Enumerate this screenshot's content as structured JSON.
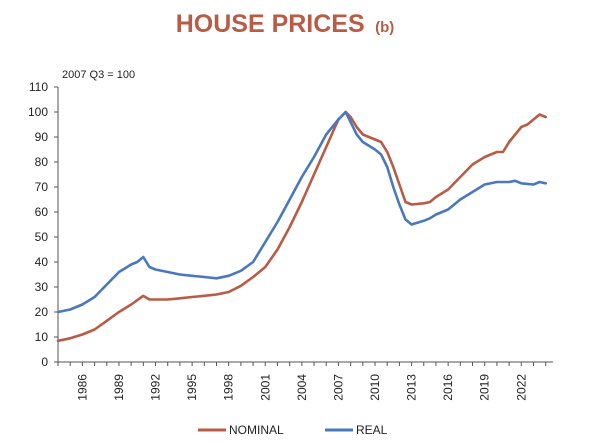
{
  "chart_data": {
    "type": "line",
    "title": "HOUSE PRICES",
    "subtitle": "(b)",
    "note": "2007 Q3 = 100",
    "xlabel": "",
    "ylabel": "",
    "xlim": [
      1984.0,
      2024.6
    ],
    "ylim": [
      0,
      110
    ],
    "y_ticks": [
      0,
      10,
      20,
      30,
      40,
      50,
      60,
      70,
      80,
      90,
      100,
      110
    ],
    "x_tick_labels": [
      "1986",
      "1989",
      "1992",
      "1995",
      "1998",
      "2001",
      "2004",
      "2007",
      "2010",
      "2013",
      "2016",
      "2019",
      "2022"
    ],
    "grid": false,
    "legend_position": "bottom",
    "series": [
      {
        "name": "NOMINAL",
        "color": "#b85c45",
        "points": [
          [
            1984.0,
            8.5
          ],
          [
            1985.0,
            9.5
          ],
          [
            1986.0,
            11
          ],
          [
            1987.0,
            13
          ],
          [
            1988.0,
            16.5
          ],
          [
            1989.0,
            20
          ],
          [
            1990.0,
            23
          ],
          [
            1991.0,
            26.5
          ],
          [
            1991.5,
            25
          ],
          [
            1992.0,
            25
          ],
          [
            1993.0,
            25
          ],
          [
            1994.0,
            25.5
          ],
          [
            1995.0,
            26
          ],
          [
            1996.0,
            26.5
          ],
          [
            1997.0,
            27
          ],
          [
            1998.0,
            28
          ],
          [
            1999.0,
            30.5
          ],
          [
            2000.0,
            34
          ],
          [
            2001.0,
            38
          ],
          [
            2002.0,
            45
          ],
          [
            2003.0,
            54
          ],
          [
            2004.0,
            64
          ],
          [
            2005.0,
            75
          ],
          [
            2006.0,
            86
          ],
          [
            2007.0,
            97
          ],
          [
            2007.6,
            100
          ],
          [
            2008.0,
            98
          ],
          [
            2008.5,
            94
          ],
          [
            2009.0,
            91
          ],
          [
            2010.0,
            89
          ],
          [
            2010.5,
            88
          ],
          [
            2011.0,
            84
          ],
          [
            2011.5,
            78
          ],
          [
            2012.0,
            71
          ],
          [
            2012.5,
            64
          ],
          [
            2013.0,
            63
          ],
          [
            2014.0,
            63.5
          ],
          [
            2014.5,
            64
          ],
          [
            2015.0,
            66
          ],
          [
            2016.0,
            69
          ],
          [
            2017.0,
            74
          ],
          [
            2018.0,
            79
          ],
          [
            2019.0,
            82
          ],
          [
            2020.0,
            84
          ],
          [
            2020.5,
            84
          ],
          [
            2021.0,
            88
          ],
          [
            2021.5,
            91
          ],
          [
            2022.0,
            94
          ],
          [
            2022.5,
            95
          ],
          [
            2023.0,
            97
          ],
          [
            2023.5,
            99
          ],
          [
            2024.0,
            98
          ]
        ]
      },
      {
        "name": "REAL",
        "color": "#4a78bf",
        "points": [
          [
            1984.0,
            20
          ],
          [
            1985.0,
            21
          ],
          [
            1986.0,
            23
          ],
          [
            1987.0,
            26
          ],
          [
            1988.0,
            31
          ],
          [
            1989.0,
            36
          ],
          [
            1990.0,
            39
          ],
          [
            1990.5,
            40
          ],
          [
            1991.0,
            42
          ],
          [
            1991.5,
            38
          ],
          [
            1992.0,
            37
          ],
          [
            1993.0,
            36
          ],
          [
            1994.0,
            35
          ],
          [
            1995.0,
            34.5
          ],
          [
            1996.0,
            34
          ],
          [
            1997.0,
            33.5
          ],
          [
            1998.0,
            34.5
          ],
          [
            1999.0,
            36.5
          ],
          [
            2000.0,
            40
          ],
          [
            2001.0,
            48
          ],
          [
            2002.0,
            56
          ],
          [
            2003.0,
            65
          ],
          [
            2004.0,
            74
          ],
          [
            2005.0,
            82
          ],
          [
            2006.0,
            91
          ],
          [
            2007.0,
            97
          ],
          [
            2007.6,
            100
          ],
          [
            2008.0,
            96
          ],
          [
            2008.5,
            91
          ],
          [
            2009.0,
            88
          ],
          [
            2010.0,
            85
          ],
          [
            2010.5,
            83
          ],
          [
            2011.0,
            78
          ],
          [
            2011.5,
            70
          ],
          [
            2012.0,
            63
          ],
          [
            2012.5,
            57
          ],
          [
            2013.0,
            55
          ],
          [
            2014.0,
            56.5
          ],
          [
            2014.5,
            57.5
          ],
          [
            2015.0,
            59
          ],
          [
            2016.0,
            61
          ],
          [
            2017.0,
            65
          ],
          [
            2018.0,
            68
          ],
          [
            2019.0,
            71
          ],
          [
            2020.0,
            72
          ],
          [
            2021.0,
            72
          ],
          [
            2021.5,
            72.5
          ],
          [
            2022.0,
            71.5
          ],
          [
            2023.0,
            71
          ],
          [
            2023.5,
            72
          ],
          [
            2024.0,
            71.5
          ]
        ]
      }
    ]
  }
}
